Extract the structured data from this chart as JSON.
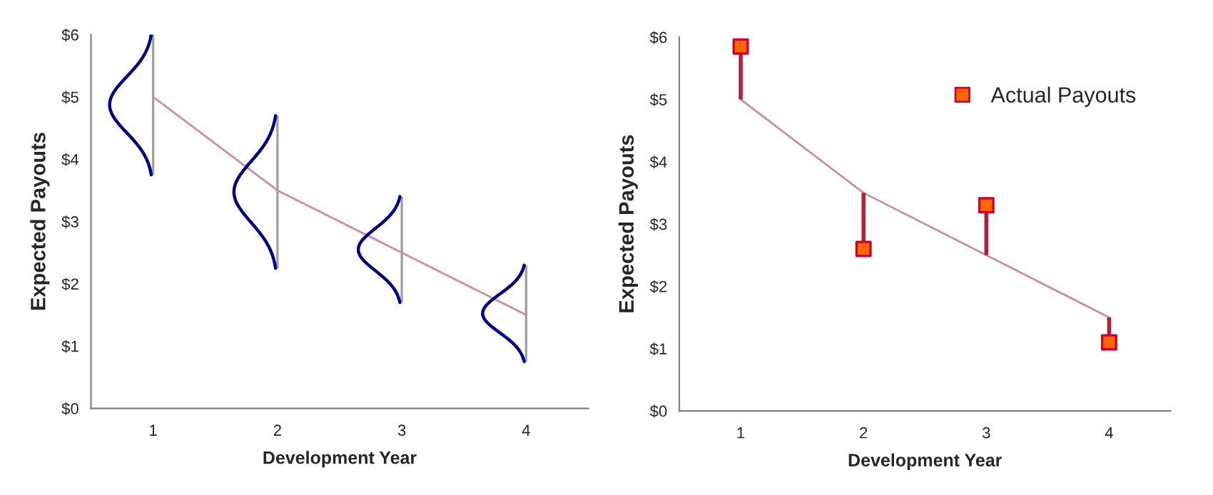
{
  "chart_data": [
    {
      "type": "line",
      "xlabel": "Development Year",
      "ylabel": "Expected Payouts",
      "categories": [
        "1",
        "2",
        "3",
        "4"
      ],
      "series": [
        {
          "color": "#c8909c",
          "values": [
            5,
            3.5,
            2.5,
            1.5
          ],
          "errors": [
            [
              3.75,
              6
            ],
            [
              2.25,
              4.7
            ],
            [
              1.7,
              3.4
            ],
            [
              0.75,
              2.3
            ]
          ]
        }
      ],
      "ylim": [
        0,
        6
      ],
      "yticks": [
        {
          "value": 0,
          "label": "$0"
        },
        {
          "value": 1,
          "label": "$1"
        },
        {
          "value": 2,
          "label": "$2"
        },
        {
          "value": 3,
          "label": "$3"
        },
        {
          "value": 4,
          "label": "$4"
        },
        {
          "value": 5,
          "label": "$5"
        },
        {
          "value": 6,
          "label": "$6"
        }
      ],
      "grid": false,
      "legend": false
    },
    {
      "type": "line",
      "xlabel": "Development Year",
      "ylabel": "Expected Payouts",
      "categories": [
        "1",
        "2",
        "3",
        "4"
      ],
      "series": [
        {
          "color": "#c8909c",
          "values": [
            5,
            3.5,
            2.5,
            1.5
          ]
        },
        {
          "type": "scatter",
          "name": "Actual Payouts",
          "color": "#ff6600",
          "values": [
            5.85,
            2.6,
            3.3,
            1.1
          ],
          "marker": "square",
          "errors": [
            [
              5,
              5.85
            ],
            [
              2.6,
              3.5
            ],
            [
              2.5,
              3.3
            ],
            [
              1.1,
              1.5
            ]
          ]
        }
      ],
      "ylim": [
        0,
        6
      ],
      "yticks": [
        {
          "value": 0,
          "label": "$0"
        },
        {
          "value": 1,
          "label": "$1"
        },
        {
          "value": 2,
          "label": "$2"
        },
        {
          "value": 3,
          "label": "$3"
        },
        {
          "value": 4,
          "label": "$4"
        },
        {
          "value": 5,
          "label": "$5"
        },
        {
          "value": 6,
          "label": "$6"
        }
      ],
      "grid": false,
      "legend": "top right"
    }
  ]
}
